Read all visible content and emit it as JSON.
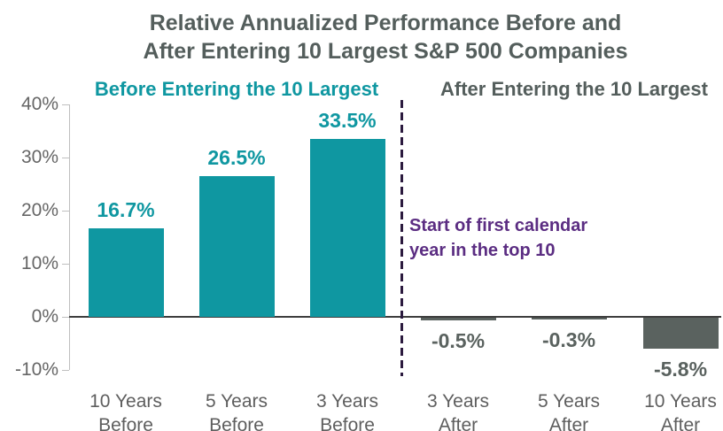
{
  "title": {
    "line1": "Relative Annualized Performance Before and",
    "line2": "After Entering 10 Largest S&P 500 Companies"
  },
  "section_labels": {
    "before": "Before Entering the 10 Largest",
    "after": "After Entering the 10 Largest"
  },
  "annotation": {
    "line1": "Start of first calendar",
    "line2": "year in the top 10"
  },
  "chart_data": {
    "type": "bar",
    "title": "Relative Annualized Performance Before and After Entering 10 Largest S&P 500 Companies",
    "categories": [
      "10 Years Before",
      "5 Years Before",
      "3 Years Before",
      "3 Years After",
      "5 Years After",
      "10 Years After"
    ],
    "category_lines": [
      [
        "10 Years",
        "Before"
      ],
      [
        "5 Years",
        "Before"
      ],
      [
        "3 Years",
        "Before"
      ],
      [
        "3 Years",
        "After"
      ],
      [
        "5 Years",
        "After"
      ],
      [
        "10 Years",
        "After"
      ]
    ],
    "values": [
      16.7,
      26.5,
      33.5,
      -0.5,
      -0.3,
      -5.8
    ],
    "value_labels": [
      "16.7%",
      "26.5%",
      "33.5%",
      "-0.5%",
      "-0.3%",
      "-5.8%"
    ],
    "xlabel": "",
    "ylabel": "",
    "ylim": [
      -10,
      40
    ],
    "y_ticks": [
      "40%",
      "30%",
      "20%",
      "10%",
      "0%",
      "-10%"
    ],
    "y_tick_values": [
      40,
      30,
      20,
      10,
      0,
      -10
    ],
    "grid": false,
    "legend_position": "none",
    "groups": [
      {
        "name": "Before Entering the 10 Largest",
        "color": "#0F97A1",
        "indices": [
          0,
          1,
          2
        ]
      },
      {
        "name": "After Entering the 10 Largest",
        "color": "#5A625F",
        "indices": [
          3,
          4,
          5
        ]
      }
    ],
    "annotations": [
      "Start of first calendar year in the top 10"
    ],
    "colors": {
      "positive_bar": "#0F97A1",
      "negative_bar": "#5A625F",
      "positive_label": "#0F97A1",
      "negative_label": "#58605E",
      "title": "#545E5C",
      "axis_label": "#666666",
      "category_label": "#5E5E5E",
      "annotation": "#5B2D82",
      "divider": "#2B1A3E",
      "baseline": "#3D3D3D"
    }
  }
}
